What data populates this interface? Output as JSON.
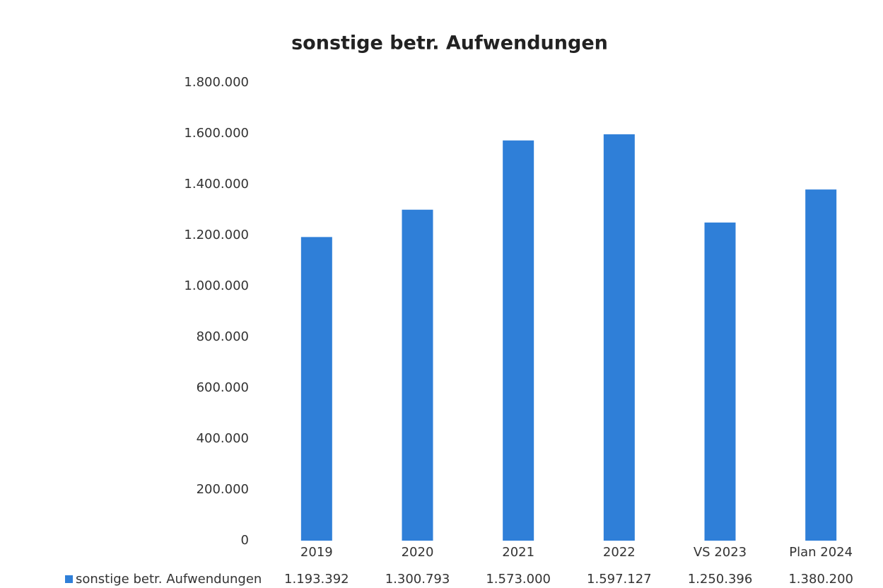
{
  "chart_data": {
    "type": "bar",
    "title": "sonstige betr. Aufwendungen",
    "categories": [
      "2019",
      "2020",
      "2021",
      "2022",
      "VS 2023",
      "Plan 2024"
    ],
    "series": [
      {
        "name": "sonstige betr. Aufwendungen",
        "color": "#2f7fd8",
        "values": [
          1193392,
          1300793,
          1573000,
          1597127,
          1250396,
          1380200
        ],
        "value_labels": [
          "1.193.392",
          "1.300.793",
          "1.573.000",
          "1.597.127",
          "1.250.396",
          "1.380.200"
        ]
      }
    ],
    "ylim": [
      0,
      1800000
    ],
    "yticks": [
      0,
      {
        "value": 200000,
        "label": "200.000"
      },
      {
        "value": 400000,
        "label": "400.000"
      },
      {
        "value": 600000,
        "label": "600.000"
      },
      {
        "value": 800000,
        "label": "800.000"
      },
      {
        "value": 1000000,
        "label": "1.000.000"
      },
      {
        "value": 1200000,
        "label": "1.200.000"
      },
      {
        "value": 1400000,
        "label": "1.400.000"
      },
      {
        "value": 1600000,
        "label": "1.600.000"
      },
      {
        "value": 1800000,
        "label": "1.800.000"
      }
    ],
    "grid": false,
    "legend": "bottom"
  }
}
